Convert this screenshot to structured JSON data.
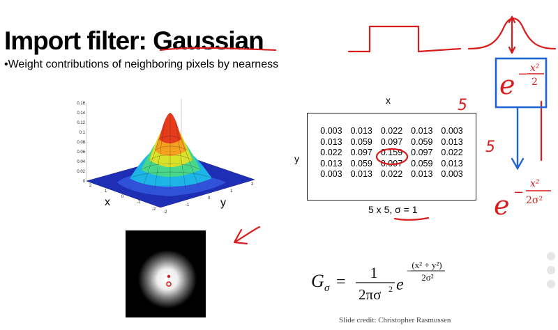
{
  "slide": {
    "title": "Import filter: Gaussian",
    "bullet": "•Weight contributions of neighboring pixels by nearness",
    "credit": "Slide credit: Christopher Rasmussen"
  },
  "surface_plot": {
    "z_ticks": [
      "0.16",
      "0.14",
      "0.12",
      "0.1",
      "0.08",
      "0.06",
      "0.04",
      "0.02",
      "0"
    ],
    "x_label": "x",
    "y_label": "y",
    "x_ticks": [
      "2",
      "1",
      "0",
      "-1",
      "-2"
    ],
    "y_ticks": [
      "-2",
      "-1",
      "0",
      "1",
      "2"
    ]
  },
  "kernel": {
    "x_label": "x",
    "y_label": "y",
    "rows": [
      [
        "0.003",
        "0.013",
        "0.022",
        "0.013",
        "0.003"
      ],
      [
        "0.013",
        "0.059",
        "0.097",
        "0.059",
        "0.013"
      ],
      [
        "0.022",
        "0.097",
        "0.159",
        "0.097",
        "0.022"
      ],
      [
        "0.013",
        "0.059",
        "0.097",
        "0.059",
        "0.013"
      ],
      [
        "0.003",
        "0.013",
        "0.022",
        "0.013",
        "0.003"
      ]
    ],
    "caption": "5 x 5, σ = 1"
  },
  "formula": {
    "lhs": "G",
    "sub": "σ",
    "eq": "=",
    "num": "1",
    "den": "2πσ",
    "den_exp": "2",
    "base": "e",
    "exp_num": "(x² + y²)",
    "exp_den": "2σ²"
  },
  "annotations": {
    "five_top": "5",
    "five_side": "5",
    "exp_simple_base": "e",
    "exp_simple_num": "x²",
    "exp_simple_den": "2",
    "exp_full_base": "e",
    "exp_full_num": "x²",
    "exp_full_den": "2σ²",
    "ink_color": "#d81b1b",
    "box_color": "#1e64d2"
  }
}
